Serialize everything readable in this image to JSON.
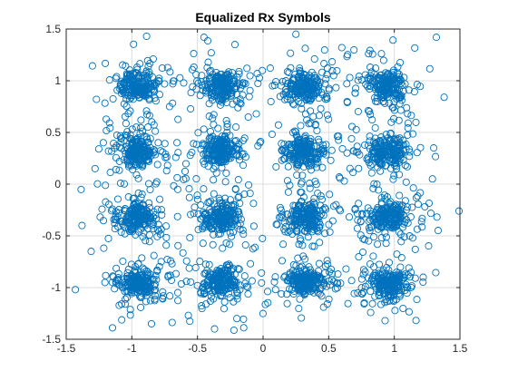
{
  "chart_data": {
    "type": "scatter",
    "title": "Equalized Rx Symbols",
    "xlabel": "",
    "ylabel": "",
    "xlim": [
      -1.5,
      1.5
    ],
    "ylim": [
      -1.5,
      1.5
    ],
    "x_ticks": [
      -1.5,
      -1,
      -0.5,
      0,
      0.5,
      1,
      1.5
    ],
    "y_ticks": [
      -1.5,
      -1,
      -0.5,
      0,
      0.5,
      1,
      1.5
    ],
    "x_tick_labels": [
      "-1.5",
      "-1",
      "-0.5",
      "0",
      "0.5",
      "1",
      "1.5"
    ],
    "y_tick_labels": [
      "-1.5",
      "-1",
      "-0.5",
      "0",
      "0.5",
      "1",
      "1.5"
    ],
    "grid": true,
    "marker": "circle",
    "marker_fill": "none",
    "series_color": "#0072BD",
    "constellation": {
      "x_levels": [
        -0.95,
        -0.32,
        0.32,
        0.95
      ],
      "y_levels": [
        -0.95,
        -0.32,
        0.32,
        0.95
      ],
      "core_points_per_cluster": 160,
      "core_spread": 0.07,
      "halo_points_per_cluster": 60,
      "halo_spread": 0.17
    },
    "outliers": [
      {
        "x": 1.32,
        "y": 1.42
      },
      {
        "x": 0.25,
        "y": 1.45
      },
      {
        "x": -0.45,
        "y": 1.42
      },
      {
        "x": -1.38,
        "y": -0.4
      },
      {
        "x": 1.5,
        "y": -0.26
      },
      {
        "x": -0.37,
        "y": -1.4
      },
      {
        "x": 1.38,
        "y": 0.84
      },
      {
        "x": -1.27,
        "y": 0.82
      },
      {
        "x": 1.3,
        "y": 0.35
      },
      {
        "x": -1.28,
        "y": 0.15
      },
      {
        "x": 0.93,
        "y": -1.32
      },
      {
        "x": -0.85,
        "y": -1.35
      },
      {
        "x": 1.22,
        "y": -0.9
      },
      {
        "x": -1.31,
        "y": -0.65
      },
      {
        "x": 0.6,
        "y": 1.32
      },
      {
        "x": -0.2,
        "y": -1.3
      }
    ]
  },
  "colors": {
    "series": "#0072BD",
    "grid": "#dcdcdc",
    "axes": "#262626"
  }
}
